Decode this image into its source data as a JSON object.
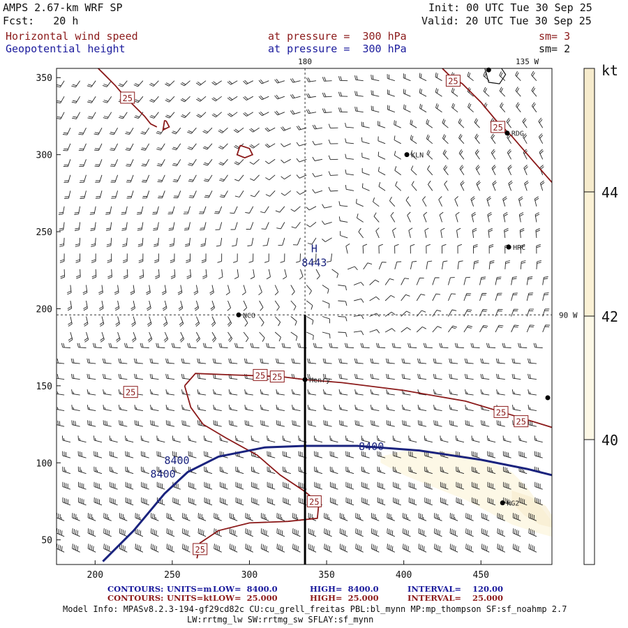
{
  "header": {
    "title": "AMPS 2.67-km WRF SP",
    "fcst": "Fcst:   20 h",
    "init": "Init: 00 UTC Tue 30 Sep 25",
    "valid": "Valid: 20 UTC Tue 30 Sep 25",
    "field1": "Horizontal wind speed",
    "field1_level": "at pressure =  300 hPa",
    "field1_sm": "sm= 3",
    "field2": "Geopotential height",
    "field2_level": "at pressure =  300 hPa",
    "field2_sm": "sm= 2"
  },
  "footer": {
    "contours1_label": "CONTOURS:",
    "contours1_units": "UNITS=m",
    "contours1_low": "LOW=  8400.0",
    "contours1_high": "HIGH=  8400.0",
    "contours1_interval": "INTERVAL=    120.00",
    "contours2_label": "CONTOURS:",
    "contours2_units": "UNITS=kt",
    "contours2_low": "LOW=  25.000",
    "contours2_high": "HIGH=  25.000",
    "contours2_interval": "INTERVAL=    25.000",
    "model_info_1": "Model Info: MPASv8.2.3-194-gf29cd82c CU:cu_grell_freitas PBL:bl_mynn MP:mp_thompson SF:sf_noahmp 2.7",
    "model_info_2": "LW:rrtmg_lw SW:rrtmg_sw SFLAY:sf_mynn"
  },
  "colors": {
    "wind_contour": "#8b1a1a",
    "height_contour": "#1a237e",
    "barb": "#222222",
    "fill_40_42": "#fdf8e6",
    "fill_44": "#f6ebcc"
  },
  "chart_data": {
    "type": "contour",
    "x_ticks": [
      200,
      250,
      300,
      350,
      400,
      450
    ],
    "y_ticks": [
      50,
      100,
      150,
      200,
      250,
      300,
      350
    ],
    "xlim": [
      175,
      496
    ],
    "ylim": [
      34,
      356
    ],
    "lon_labels": [
      {
        "text": "180",
        "x": 336
      },
      {
        "text": "135 W",
        "x": 480
      }
    ],
    "lat_label": {
      "text": "90 W",
      "y": 196
    },
    "meridian_x": 336,
    "parallel_y": 196,
    "cross_section": {
      "x": 336,
      "y_start": 34,
      "y_end": 196
    },
    "stations": [
      {
        "name": "NCO",
        "x": 293,
        "y": 196
      },
      {
        "name": "KLN",
        "x": 402,
        "y": 300
      },
      {
        "name": "RDG",
        "x": 467,
        "y": 314
      },
      {
        "name": "HRC",
        "x": 468,
        "y": 240
      },
      {
        "name": "Henry",
        "x": 336,
        "y": 154
      },
      {
        "name": "HG2",
        "x": 464,
        "y": 74
      }
    ],
    "high_marker": {
      "symbol": "H",
      "value": "8443",
      "x": 342,
      "y": 233
    },
    "height_contour_value": "8400",
    "height_contour_labels": [
      {
        "text": "8400",
        "x": 379,
        "y": 111
      },
      {
        "text": "8400",
        "x": 253,
        "y": 102
      },
      {
        "text": "8400",
        "x": 244,
        "y": 93
      }
    ],
    "wind_contour_value": "25",
    "wind_contour_labels": [
      {
        "text": "25",
        "x": 221,
        "y": 337
      },
      {
        "text": "25",
        "x": 432,
        "y": 348
      },
      {
        "text": "25",
        "x": 461,
        "y": 318
      },
      {
        "text": "25",
        "x": 307,
        "y": 157
      },
      {
        "text": "25",
        "x": 318,
        "y": 156
      },
      {
        "text": "25",
        "x": 223,
        "y": 146
      },
      {
        "text": "25",
        "x": 463,
        "y": 133
      },
      {
        "text": "25",
        "x": 476,
        "y": 127
      },
      {
        "text": "25",
        "x": 342,
        "y": 75
      },
      {
        "text": "25",
        "x": 268,
        "y": 44
      }
    ],
    "colorbar": {
      "unit": "kt",
      "levels": [
        40,
        42,
        44
      ],
      "colors": [
        "#ffffff",
        "#fdf8e6",
        "#fbf1d5",
        "#f6ebcc"
      ]
    }
  }
}
